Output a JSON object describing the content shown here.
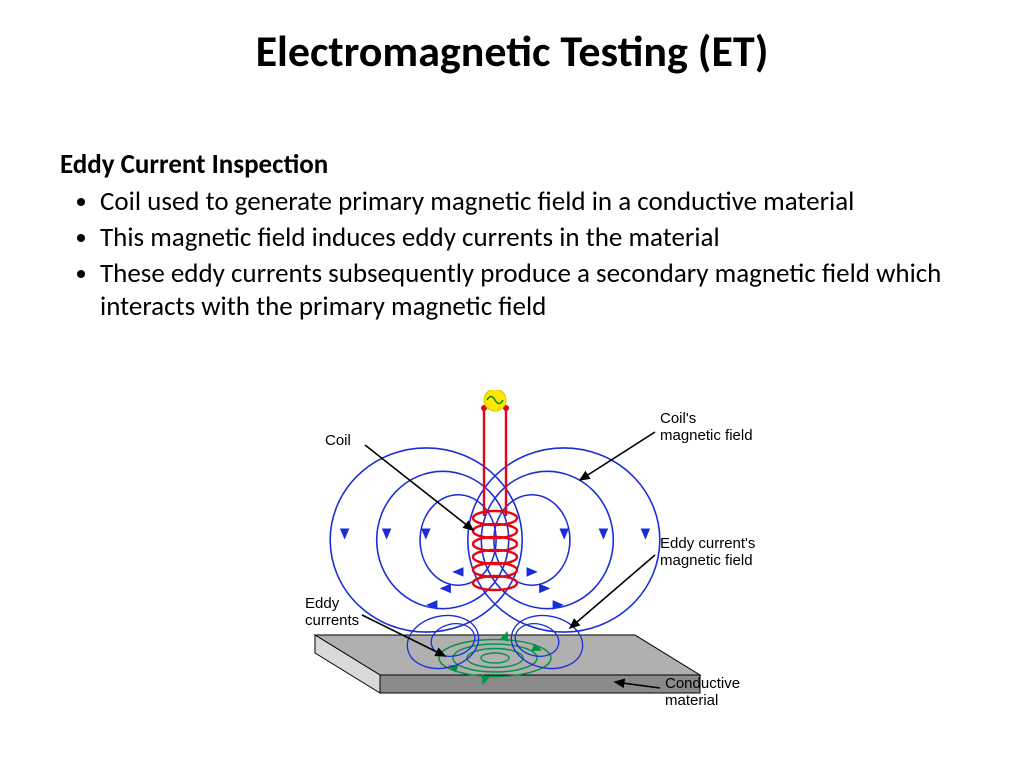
{
  "slide": {
    "title": "Electromagnetic Testing (ET)",
    "title_fontsize": 44,
    "subtitle": "Eddy Current Inspection",
    "subtitle_fontsize": 27,
    "bullets": [
      "Coil used to generate primary magnetic field in a conductive material",
      "This magnetic field induces eddy currents in the material",
      "These eddy currents subsequently produce a secondary magnetic field which interacts with the primary magnetic field"
    ],
    "bullet_fontsize": 27,
    "background_color": "#ffffff",
    "text_color": "#000000"
  },
  "diagram": {
    "type": "infographic",
    "labels": {
      "coil": "Coil",
      "coils_magnetic_field": "Coil's\nmagnetic field",
      "eddy_currents": "Eddy\ncurrents",
      "eddy_currents_magnetic_field": "Eddy current's\nmagnetic field",
      "conductive_material": "Conductive\nmaterial"
    },
    "label_fontsize": 15,
    "colors": {
      "plate_top": "#b0b0b0",
      "plate_side_light": "#d9d9d9",
      "plate_side_dark": "#8a8a8a",
      "coil_red": "#e30613",
      "field_blue": "#1b2ed6",
      "eddy_green": "#009245",
      "eddy_field_blue": "#1b2ed6",
      "signal_dot_yellow": "#ffe600",
      "signal_dot_stroke": "#c9c900",
      "sine_green": "#008800",
      "label_text": "#000000",
      "arrow_black": "#000000"
    },
    "coil_turns": 6,
    "field_loops_per_side": 3
  }
}
